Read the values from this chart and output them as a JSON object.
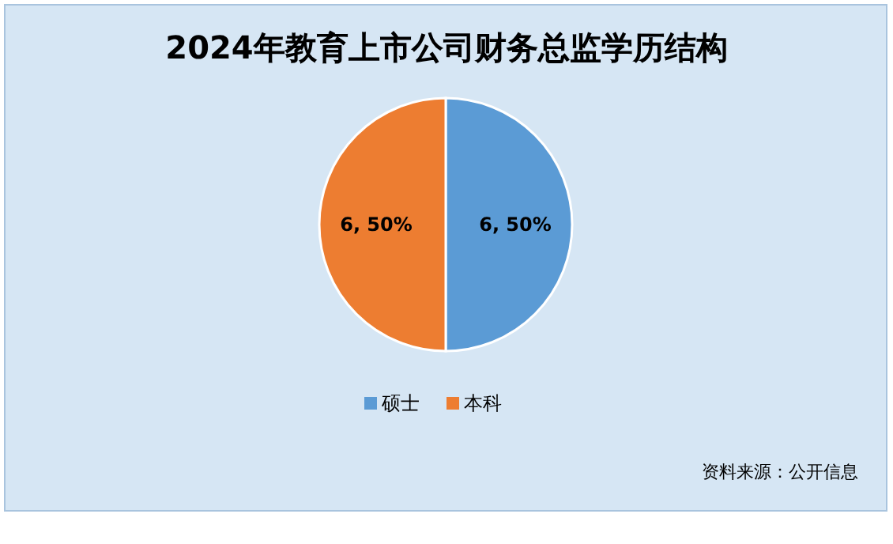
{
  "chart_data": {
    "type": "pie",
    "title": "2024年教育上市公司财务总监学历结构",
    "categories": [
      "硕士",
      "本科"
    ],
    "values": [
      6,
      6
    ],
    "colors": [
      "#5b9bd5",
      "#ed7d31"
    ],
    "value_labels": [
      "6, 50%",
      "6, 50%"
    ],
    "legend": "bottom",
    "annotations": [
      "资料来源：公开信息"
    ]
  }
}
